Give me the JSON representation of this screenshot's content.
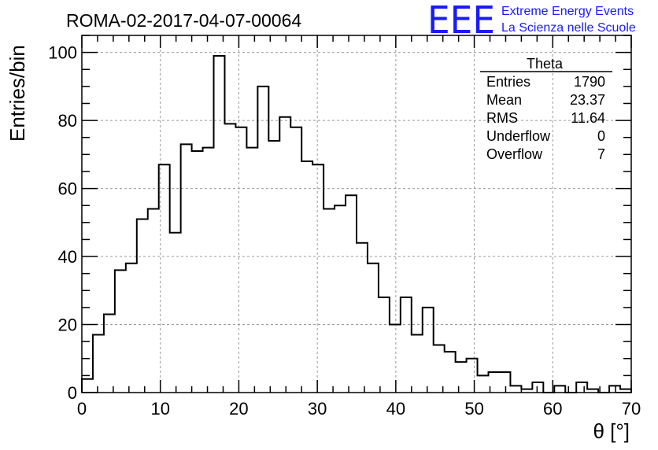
{
  "chart_data": {
    "type": "bar",
    "title": "ROMA-02-2017-04-07-00064",
    "xlabel": "θ [°]",
    "ylabel": "Entries/bin",
    "xlim": [
      0,
      70
    ],
    "ylim": [
      0,
      105
    ],
    "x_ticks": [
      "0",
      "10",
      "20",
      "30",
      "40",
      "50",
      "60",
      "70"
    ],
    "y_ticks": [
      "0",
      "20",
      "40",
      "60",
      "80",
      "100"
    ],
    "bin_width": 1.4,
    "values": [
      4,
      17,
      23,
      36,
      38,
      51,
      54,
      67,
      47,
      73,
      71,
      72,
      99,
      79,
      78,
      72,
      90,
      74,
      81,
      78,
      68,
      67,
      54,
      55,
      58,
      44,
      38,
      28,
      20,
      28,
      17,
      25,
      14,
      12,
      9,
      10,
      5,
      6,
      6,
      2,
      1,
      3,
      0,
      2,
      0,
      3,
      1,
      0,
      2,
      1
    ],
    "grid": true,
    "logo": {
      "mark": "EEE",
      "line1": "Extreme Energy Events",
      "line2": "La Scienza nelle Scuole"
    },
    "stats_box": {
      "title": "Theta",
      "rows": [
        {
          "label": "Entries",
          "value": "1790"
        },
        {
          "label": "Mean",
          "value": "23.37"
        },
        {
          "label": "RMS",
          "value": "11.64"
        },
        {
          "label": "Underflow",
          "value": "0"
        },
        {
          "label": "Overflow",
          "value": "7"
        }
      ]
    }
  }
}
